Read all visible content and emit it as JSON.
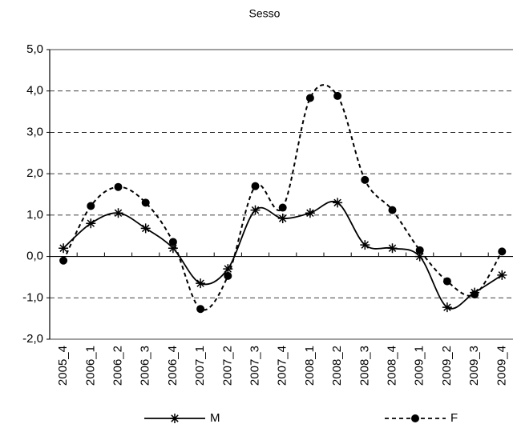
{
  "chart_data": {
    "type": "line",
    "title": "Sesso",
    "categories": [
      "2005_4",
      "2006_1",
      "2006_2",
      "2006_3",
      "2006_4",
      "2007_1",
      "2007_2",
      "2007_3",
      "2007_4",
      "2008_1",
      "2008_2",
      "2008_3",
      "2008_4",
      "2009_1",
      "2009_2",
      "2009_3",
      "2009_4"
    ],
    "series": [
      {
        "name": "M",
        "color": "#000000",
        "marker": "asterisk",
        "dash": "solid",
        "values": [
          0.2,
          0.8,
          1.05,
          0.68,
          0.2,
          -0.65,
          -0.3,
          1.12,
          0.92,
          1.05,
          1.3,
          0.28,
          0.2,
          0.0,
          -1.23,
          -0.87,
          -0.45
        ]
      },
      {
        "name": "F",
        "color": "#000000",
        "marker": "circle",
        "dash": "dashed",
        "values": [
          -0.1,
          1.22,
          1.68,
          1.3,
          0.35,
          -1.27,
          -0.47,
          1.7,
          1.18,
          3.83,
          3.88,
          1.85,
          1.12,
          0.15,
          -0.6,
          -0.92,
          0.12
        ]
      }
    ],
    "ylim": [
      -2,
      5
    ],
    "yticks": [
      {
        "value": -2,
        "label": "-2,0"
      },
      {
        "value": -1,
        "label": "-1,0"
      },
      {
        "value": 0,
        "label": "0,0"
      },
      {
        "value": 1,
        "label": "1,0"
      },
      {
        "value": 2,
        "label": "2,0"
      },
      {
        "value": 3,
        "label": "3,0"
      },
      {
        "value": 4,
        "label": "4,0"
      },
      {
        "value": 5,
        "label": "5,0"
      }
    ],
    "grid": true,
    "smooth": true,
    "legend": "bottom"
  }
}
